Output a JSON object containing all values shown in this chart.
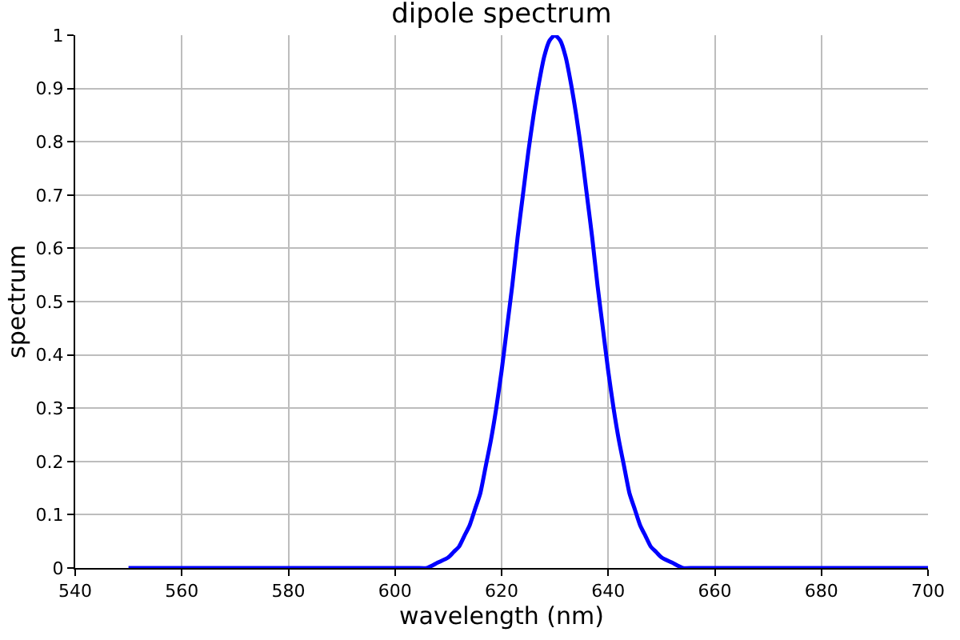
{
  "chart_data": {
    "type": "line",
    "title": "dipole spectrum",
    "xlabel": "wavelength (nm)",
    "ylabel": "spectrum",
    "x": [
      550,
      600,
      604,
      606,
      608,
      610,
      611,
      612,
      613,
      614,
      615,
      616,
      617,
      618,
      619,
      620,
      621,
      622,
      623,
      624,
      625,
      626,
      627,
      628,
      629,
      630,
      631,
      632,
      633,
      634,
      635,
      636,
      637,
      638,
      639,
      640,
      641,
      642,
      643,
      644,
      645,
      646,
      647,
      648,
      649,
      650,
      652,
      654,
      656,
      660,
      700
    ],
    "series": [
      {
        "color": "#0000ff",
        "values": [
          0,
          0,
          0,
          0,
          0.01,
          0.02,
          0.03,
          0.04,
          0.06,
          0.08,
          0.11,
          0.14,
          0.19,
          0.24,
          0.3,
          0.37,
          0.45,
          0.53,
          0.62,
          0.7,
          0.78,
          0.85,
          0.91,
          0.96,
          0.99,
          1,
          0.99,
          0.96,
          0.91,
          0.85,
          0.78,
          0.7,
          0.62,
          0.53,
          0.45,
          0.37,
          0.3,
          0.24,
          0.19,
          0.14,
          0.11,
          0.08,
          0.06,
          0.04,
          0.03,
          0.02,
          0.01,
          0,
          0,
          0,
          0
        ]
      }
    ],
    "xlim": [
      540,
      700
    ],
    "xticks": [
      540,
      560,
      580,
      600,
      620,
      640,
      660,
      680,
      700
    ],
    "ylim": [
      0,
      1
    ],
    "yticks": [
      0,
      0.1,
      0.2,
      0.3,
      0.4,
      0.5,
      0.6,
      0.7,
      0.8,
      0.9,
      1
    ],
    "grid": true,
    "marker": "none",
    "line_style": "solid"
  }
}
